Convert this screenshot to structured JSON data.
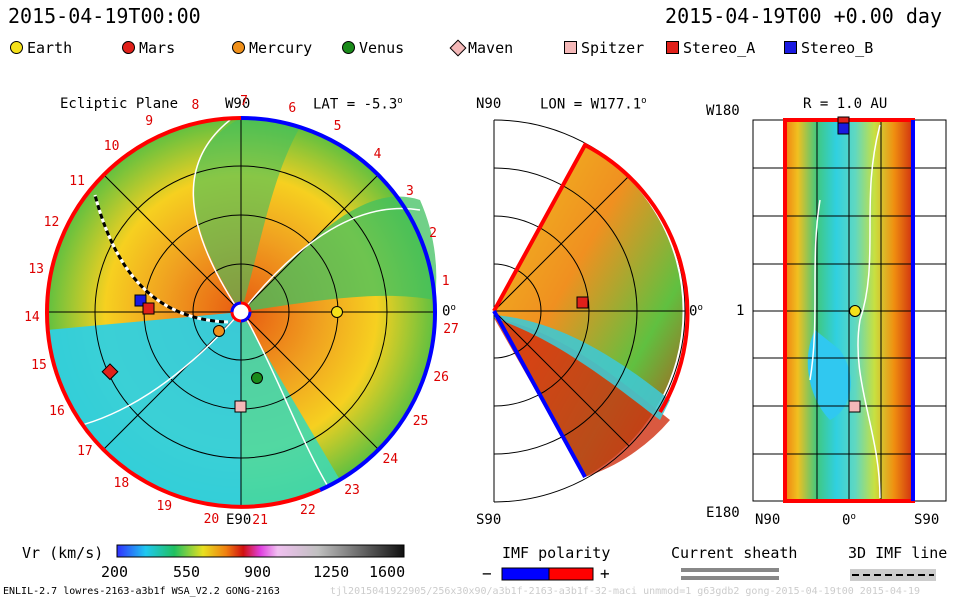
{
  "header": {
    "datetime": "2015-04-19T00:00",
    "model_time": "2015-04-19T00 +0.00 day"
  },
  "legend": [
    {
      "label": "Earth",
      "color": "#f5e11a",
      "shape": "circle"
    },
    {
      "label": "Mars",
      "color": "#e0201a",
      "shape": "circle"
    },
    {
      "label": "Mercury",
      "color": "#f0901a",
      "shape": "circle"
    },
    {
      "label": "Venus",
      "color": "#1a8a1a",
      "shape": "circle"
    },
    {
      "label": "Maven",
      "color": "#f4b8b8",
      "shape": "diamond"
    },
    {
      "label": "Spitzer",
      "color": "#f4b8b8",
      "shape": "square"
    },
    {
      "label": "Stereo_A",
      "color": "#e0201a",
      "shape": "square"
    },
    {
      "label": "Stereo_B",
      "color": "#1a1ae0",
      "shape": "square"
    }
  ],
  "panels": {
    "ecliptic": {
      "title": "Ecliptic Plane",
      "top_label": "W90",
      "lat": "LAT = -5.3",
      "bottom_label": "E90",
      "right_label": "0",
      "sector_numbers": [
        "1",
        "2",
        "3",
        "4",
        "5",
        "6",
        "7",
        "8",
        "9",
        "10",
        "11",
        "12",
        "13",
        "14",
        "15",
        "16",
        "17",
        "18",
        "19",
        "20",
        "21",
        "22",
        "23",
        "24",
        "25",
        "26",
        "27"
      ]
    },
    "meridional": {
      "top_left": "N90",
      "lon": "LON = W177.1",
      "bottom_left": "S90",
      "right_label": "0"
    },
    "radial": {
      "title": "R = 1.0 AU",
      "top_left": "W180",
      "mid_left": "1",
      "bottom_left": "E180",
      "x_left": "N90",
      "x_mid": "0",
      "x_right": "S90"
    }
  },
  "colorbar": {
    "label": "Vr (km/s)",
    "ticks": [
      "200",
      "550",
      "900",
      "1250",
      "1600"
    ]
  },
  "imf_polarity": {
    "label": "IMF polarity",
    "minus": "−",
    "plus": "+",
    "neg_color": "#0000ff",
    "pos_color": "#ff0000"
  },
  "current_sheath": {
    "label": "Current sheath"
  },
  "imf_line": {
    "label": "3D IMF line"
  },
  "footer": {
    "left": "ENLIL-2.7 lowres-2163-a3b1f WSA_V2.2 GONG-2163",
    "right": "tjl2015041922905/256x30x90/a3b1f-2163-a3b1f-32-maci unmmod=1 g63gdb2 gong-2015-04-19t00 2015-04-19"
  }
}
